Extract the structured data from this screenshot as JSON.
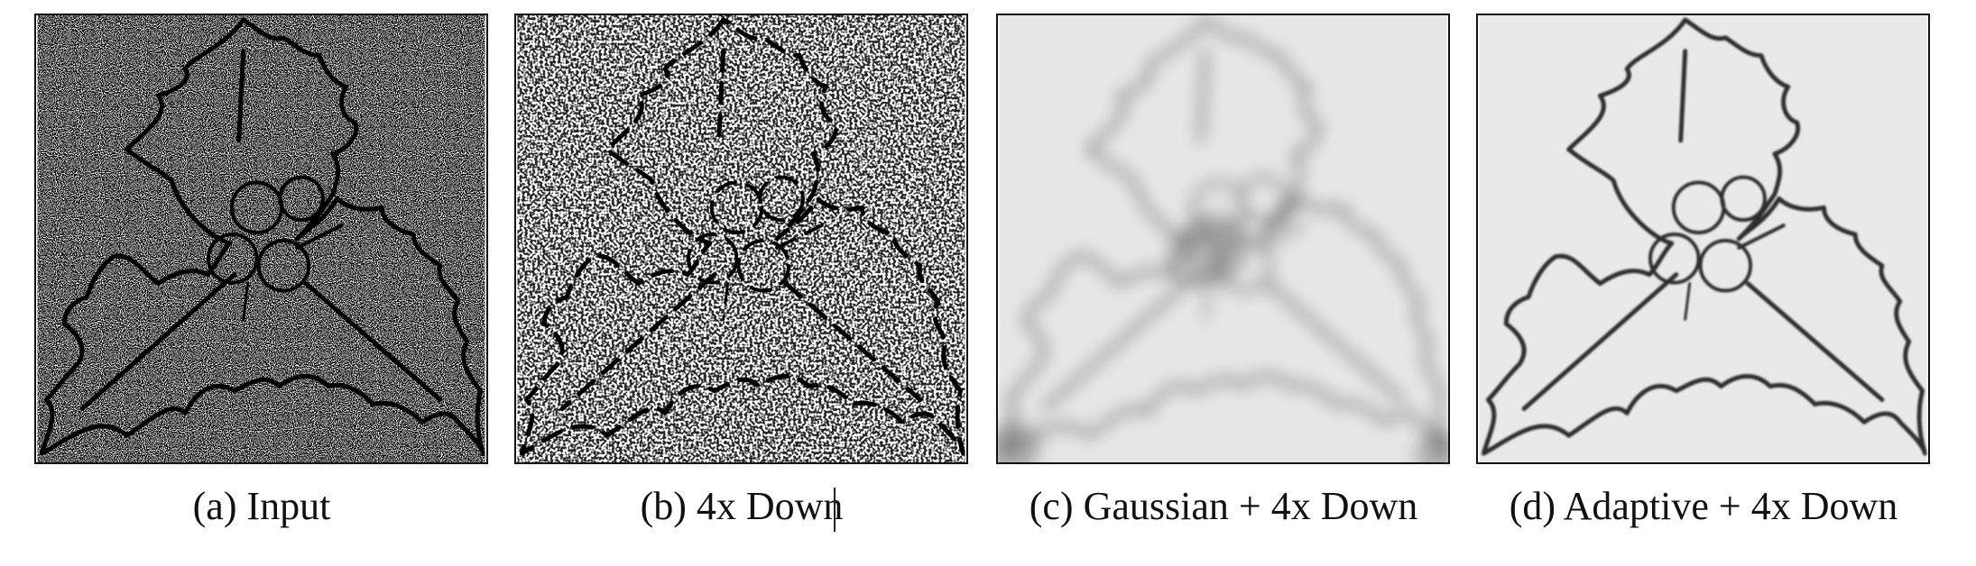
{
  "figure": {
    "panels": [
      {
        "id": "a",
        "caption": "(a) Input"
      },
      {
        "id": "b",
        "caption": "(b) 4x Down"
      },
      {
        "id": "c",
        "caption": "(c) Gaussian + 4x Down"
      },
      {
        "id": "d",
        "caption": "(d) Adaptive + 4x Down"
      }
    ]
  }
}
